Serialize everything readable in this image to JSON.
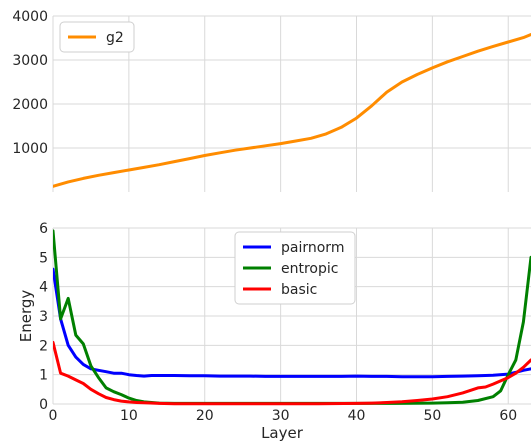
{
  "chart_data": [
    {
      "type": "line",
      "xlim": [
        0,
        63
      ],
      "ylim": [
        0,
        4000
      ],
      "yticks": [
        1000,
        2000,
        3000,
        4000
      ],
      "ytick_labels": [
        "1000",
        "2000",
        "3000",
        "4000"
      ],
      "grid": true,
      "legend": "top-left",
      "series": [
        {
          "name": "g2",
          "color": "#ff8c00",
          "x": [
            0,
            2,
            4,
            6,
            8,
            10,
            12,
            14,
            16,
            18,
            20,
            22,
            24,
            26,
            28,
            30,
            32,
            34,
            36,
            38,
            40,
            42,
            44,
            46,
            48,
            50,
            52,
            54,
            56,
            58,
            60,
            62,
            63
          ],
          "y": [
            130,
            230,
            310,
            380,
            440,
            500,
            560,
            620,
            690,
            760,
            830,
            890,
            950,
            1000,
            1050,
            1100,
            1160,
            1220,
            1320,
            1470,
            1680,
            1960,
            2270,
            2500,
            2670,
            2820,
            2960,
            3080,
            3200,
            3310,
            3410,
            3510,
            3580
          ]
        }
      ]
    },
    {
      "type": "line",
      "xlim": [
        0,
        63
      ],
      "ylim": [
        0,
        6
      ],
      "xticks": [
        0,
        10,
        20,
        30,
        40,
        50,
        60
      ],
      "xtick_labels": [
        "0",
        "10",
        "20",
        "30",
        "40",
        "50",
        "60"
      ],
      "yticks": [
        0,
        1,
        2,
        3,
        4,
        5,
        6
      ],
      "ytick_labels": [
        "0",
        "1",
        "2",
        "3",
        "4",
        "5",
        "6"
      ],
      "xlabel": "Layer",
      "ylabel": "Energy",
      "grid": true,
      "legend": "top-center",
      "series": [
        {
          "name": "pairnorm",
          "color": "#0000ff",
          "x": [
            0,
            1,
            2,
            3,
            4,
            5,
            6,
            7,
            8,
            9,
            10,
            11,
            12,
            13,
            14,
            16,
            18,
            20,
            22,
            24,
            26,
            28,
            30,
            32,
            34,
            36,
            38,
            40,
            42,
            44,
            46,
            48,
            50,
            52,
            54,
            56,
            58,
            60,
            61,
            62,
            63
          ],
          "y": [
            4.6,
            2.9,
            2.0,
            1.6,
            1.35,
            1.2,
            1.15,
            1.1,
            1.05,
            1.05,
            1.0,
            0.97,
            0.95,
            0.97,
            0.97,
            0.97,
            0.96,
            0.96,
            0.95,
            0.95,
            0.95,
            0.94,
            0.94,
            0.94,
            0.94,
            0.94,
            0.94,
            0.95,
            0.94,
            0.94,
            0.93,
            0.93,
            0.93,
            0.94,
            0.95,
            0.96,
            0.98,
            1.02,
            1.08,
            1.15,
            1.2
          ]
        },
        {
          "name": "entropic",
          "color": "#008000",
          "x": [
            0,
            1,
            2,
            3,
            4,
            5,
            6,
            7,
            8,
            9,
            10,
            11,
            12,
            14,
            16,
            18,
            20,
            25,
            30,
            35,
            40,
            45,
            50,
            52,
            54,
            56,
            58,
            59,
            60,
            61,
            62,
            63
          ],
          "y": [
            5.9,
            2.9,
            3.6,
            2.35,
            2.05,
            1.3,
            0.9,
            0.55,
            0.42,
            0.32,
            0.2,
            0.12,
            0.07,
            0.03,
            0.02,
            0.02,
            0.02,
            0.02,
            0.02,
            0.02,
            0.02,
            0.02,
            0.03,
            0.04,
            0.06,
            0.12,
            0.25,
            0.45,
            1.0,
            1.5,
            2.8,
            5.0
          ]
        },
        {
          "name": "basic",
          "color": "#ff0000",
          "x": [
            0,
            1,
            2,
            3,
            4,
            5,
            6,
            7,
            8,
            9,
            10,
            11,
            12,
            14,
            16,
            18,
            20,
            25,
            30,
            35,
            40,
            42,
            44,
            46,
            48,
            50,
            52,
            54,
            56,
            57,
            58,
            60,
            61,
            62,
            63
          ],
          "y": [
            2.1,
            1.05,
            0.95,
            0.82,
            0.7,
            0.5,
            0.35,
            0.22,
            0.15,
            0.1,
            0.07,
            0.05,
            0.04,
            0.02,
            0.01,
            0.01,
            0.01,
            0.01,
            0.01,
            0.01,
            0.02,
            0.03,
            0.05,
            0.08,
            0.12,
            0.17,
            0.25,
            0.38,
            0.55,
            0.58,
            0.68,
            0.9,
            1.05,
            1.25,
            1.5
          ]
        }
      ]
    }
  ]
}
